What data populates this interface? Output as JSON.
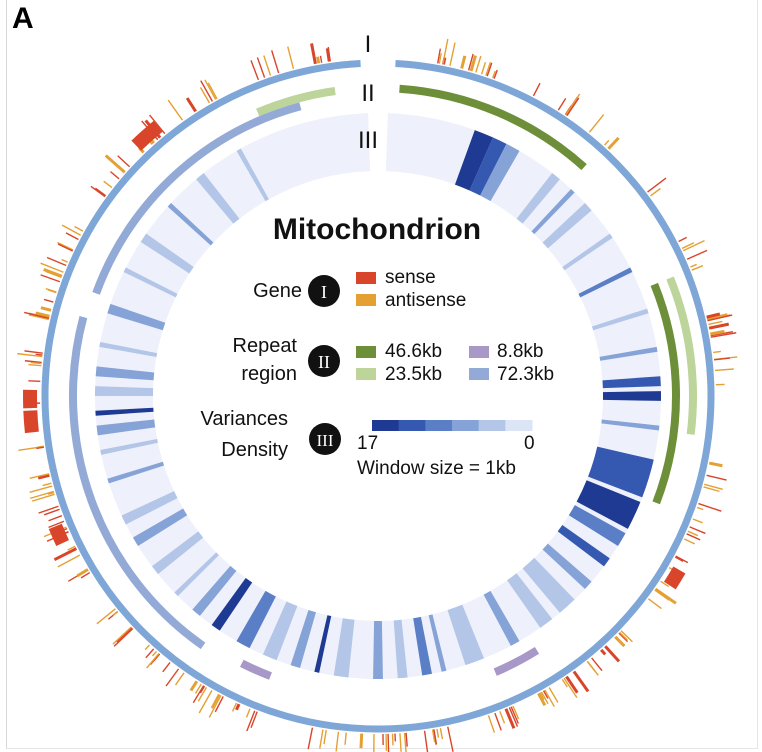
{
  "panel_letter": "A",
  "title": "Mitochondrion",
  "ring_labels": [
    "I",
    "II",
    "III"
  ],
  "legend": {
    "gene": {
      "label": "Gene",
      "badge": "I",
      "items": [
        {
          "label": "sense",
          "color": "#d9452a"
        },
        {
          "label": "antisense",
          "color": "#e5a033"
        }
      ]
    },
    "repeat": {
      "label_line1": "Repeat",
      "label_line2": "region",
      "badge": "II",
      "items": [
        {
          "label": "46.6kb",
          "color": "#6e8f3a"
        },
        {
          "label": "8.8kb",
          "color": "#a898c8"
        },
        {
          "label": "23.5kb",
          "color": "#bdd49b"
        },
        {
          "label": "72.3kb",
          "color": "#93a9d6"
        }
      ]
    },
    "variance": {
      "label_line1": "Variances",
      "label_line2": "Density",
      "badge": "III",
      "scale_max": "17",
      "scale_min": "0",
      "window": "Window size = 1kb",
      "colors": [
        "#1f3a93",
        "#3559b0",
        "#5a7fc6",
        "#86a3d8",
        "#b3c6e8",
        "#dce5f5"
      ]
    }
  },
  "colors": {
    "backbone": "#7ea6d6",
    "density_bg": "#eef1fb",
    "badge": "#111111"
  }
}
